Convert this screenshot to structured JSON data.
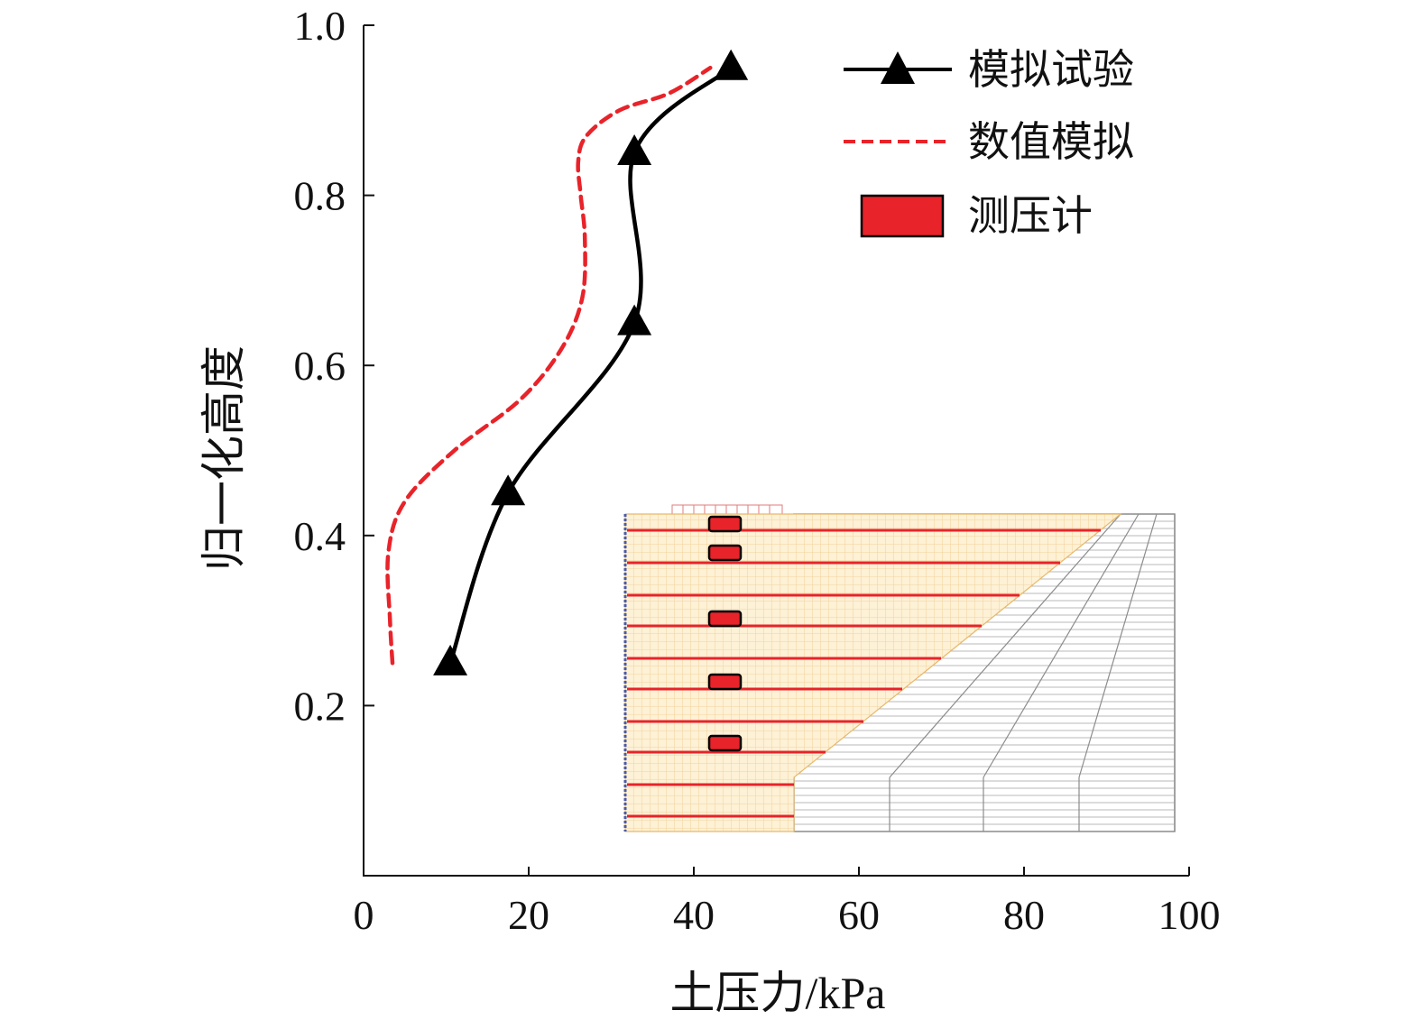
{
  "chart_data": {
    "type": "line",
    "xlabel": "土压力/kPa",
    "ylabel": "归一化高度",
    "xlim": [
      0,
      100
    ],
    "ylim": [
      0.0,
      1.0
    ],
    "x_ticks": [
      0,
      20,
      40,
      60,
      80,
      100
    ],
    "y_ticks": [
      0.2,
      0.4,
      0.6,
      0.8,
      1.0
    ],
    "x_tick_labels": [
      "0",
      "20",
      "40",
      "60",
      "80",
      "100"
    ],
    "y_tick_labels": [
      "0.2",
      "0.4",
      "0.6",
      "0.8",
      "1.0"
    ],
    "grid": false,
    "legend_position": "top-right",
    "series": [
      {
        "name": "模拟试验",
        "color": "#000000",
        "line_style": "solid",
        "marker": "triangle",
        "x": [
          10.5,
          17.5,
          32.8,
          32.8,
          44.5
        ],
        "y": [
          0.25,
          0.45,
          0.65,
          0.85,
          0.95
        ]
      },
      {
        "name": "数值模拟",
        "color": "#e8232a",
        "line_style": "dashed",
        "marker": "none",
        "x": [
          3.5,
          3.2,
          3.0,
          5.0,
          11.0,
          19.0,
          24.0,
          26.5,
          26.8,
          26.3,
          26.0,
          27.0,
          31.0,
          37.0,
          42.0
        ],
        "y": [
          0.25,
          0.3,
          0.38,
          0.44,
          0.5,
          0.56,
          0.62,
          0.68,
          0.75,
          0.8,
          0.84,
          0.87,
          0.9,
          0.92,
          0.95
        ]
      }
    ],
    "legend_extra": {
      "name": "测压计",
      "color": "#e8232a",
      "marker": "rectangle"
    }
  },
  "inset": {
    "sensor_color": "#e8232a",
    "soil_color": "#f7d9a0",
    "mesh_color": "#9a9a9a",
    "sensor_count": 5
  }
}
